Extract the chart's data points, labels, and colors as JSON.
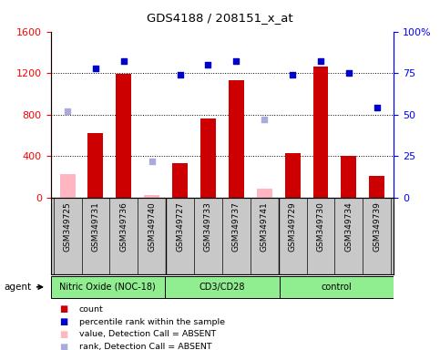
{
  "title": "GDS4188 / 208151_x_at",
  "samples": [
    "GSM349725",
    "GSM349731",
    "GSM349736",
    "GSM349740",
    "GSM349727",
    "GSM349733",
    "GSM349737",
    "GSM349741",
    "GSM349729",
    "GSM349730",
    "GSM349734",
    "GSM349739"
  ],
  "bar_values": [
    null,
    620,
    1190,
    null,
    330,
    760,
    1130,
    null,
    430,
    1260,
    400,
    210
  ],
  "bar_absent_values": [
    230,
    null,
    null,
    30,
    null,
    null,
    null,
    90,
    null,
    null,
    null,
    null
  ],
  "rank_values": [
    null,
    78,
    82,
    null,
    74,
    80,
    82,
    null,
    74,
    82,
    75,
    54
  ],
  "rank_absent_values": [
    52,
    null,
    null,
    22,
    null,
    null,
    null,
    47,
    null,
    null,
    null,
    null
  ],
  "ylim_left": [
    0,
    1600
  ],
  "ylim_right": [
    0,
    100
  ],
  "yticks_left": [
    0,
    400,
    800,
    1200,
    1600
  ],
  "yticks_right": [
    0,
    25,
    50,
    75,
    100
  ],
  "ytick_labels_right": [
    "0",
    "25",
    "50",
    "75",
    "100%"
  ],
  "bar_color": "#CC0000",
  "bar_absent_color": "#FFB6C1",
  "rank_color": "#0000CC",
  "rank_absent_color": "#AAAADD",
  "plot_bg": "#ffffff",
  "sample_bg": "#C8C8C8",
  "group_bg": "#90EE90",
  "groups": [
    {
      "name": "Nitric Oxide (NOC-18)",
      "start": 0,
      "end": 4
    },
    {
      "name": "CD3/CD28",
      "start": 4,
      "end": 8
    },
    {
      "name": "control",
      "start": 8,
      "end": 12
    }
  ],
  "legend_items": [
    {
      "color": "#CC0000",
      "label": "count"
    },
    {
      "color": "#0000CC",
      "label": "percentile rank within the sample"
    },
    {
      "color": "#FFB6C1",
      "label": "value, Detection Call = ABSENT"
    },
    {
      "color": "#AAAADD",
      "label": "rank, Detection Call = ABSENT"
    }
  ],
  "group_separators": [
    3.5,
    7.5
  ]
}
